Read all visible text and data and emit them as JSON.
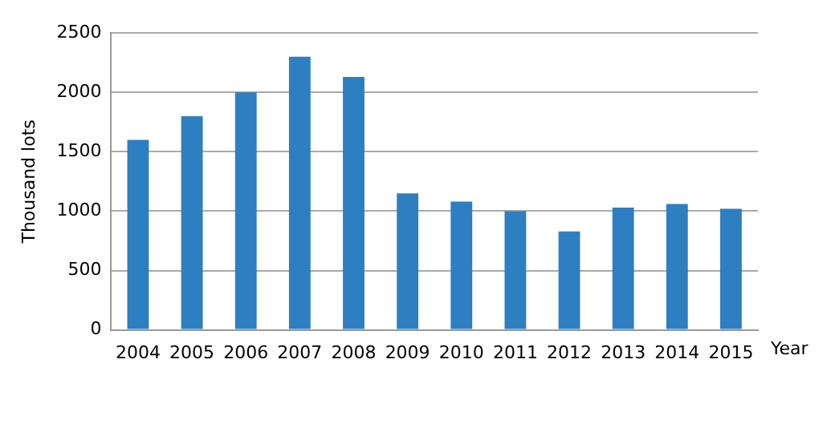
{
  "chart_data": {
    "type": "bar",
    "xlabel": "Year",
    "ylabel": "Thousand lots",
    "categories": [
      "2004",
      "2005",
      "2006",
      "2007",
      "2008",
      "2009",
      "2010",
      "2011",
      "2012",
      "2013",
      "2014",
      "2015"
    ],
    "values": [
      1600,
      1800,
      2000,
      2300,
      2130,
      1150,
      1080,
      1000,
      830,
      1030,
      1060,
      1020
    ],
    "color": "#2e7fc2",
    "ylim": [
      0,
      2500
    ],
    "yticks": [
      0,
      500,
      1000,
      1500,
      2000,
      2500
    ],
    "grid": "y",
    "legend": false
  }
}
